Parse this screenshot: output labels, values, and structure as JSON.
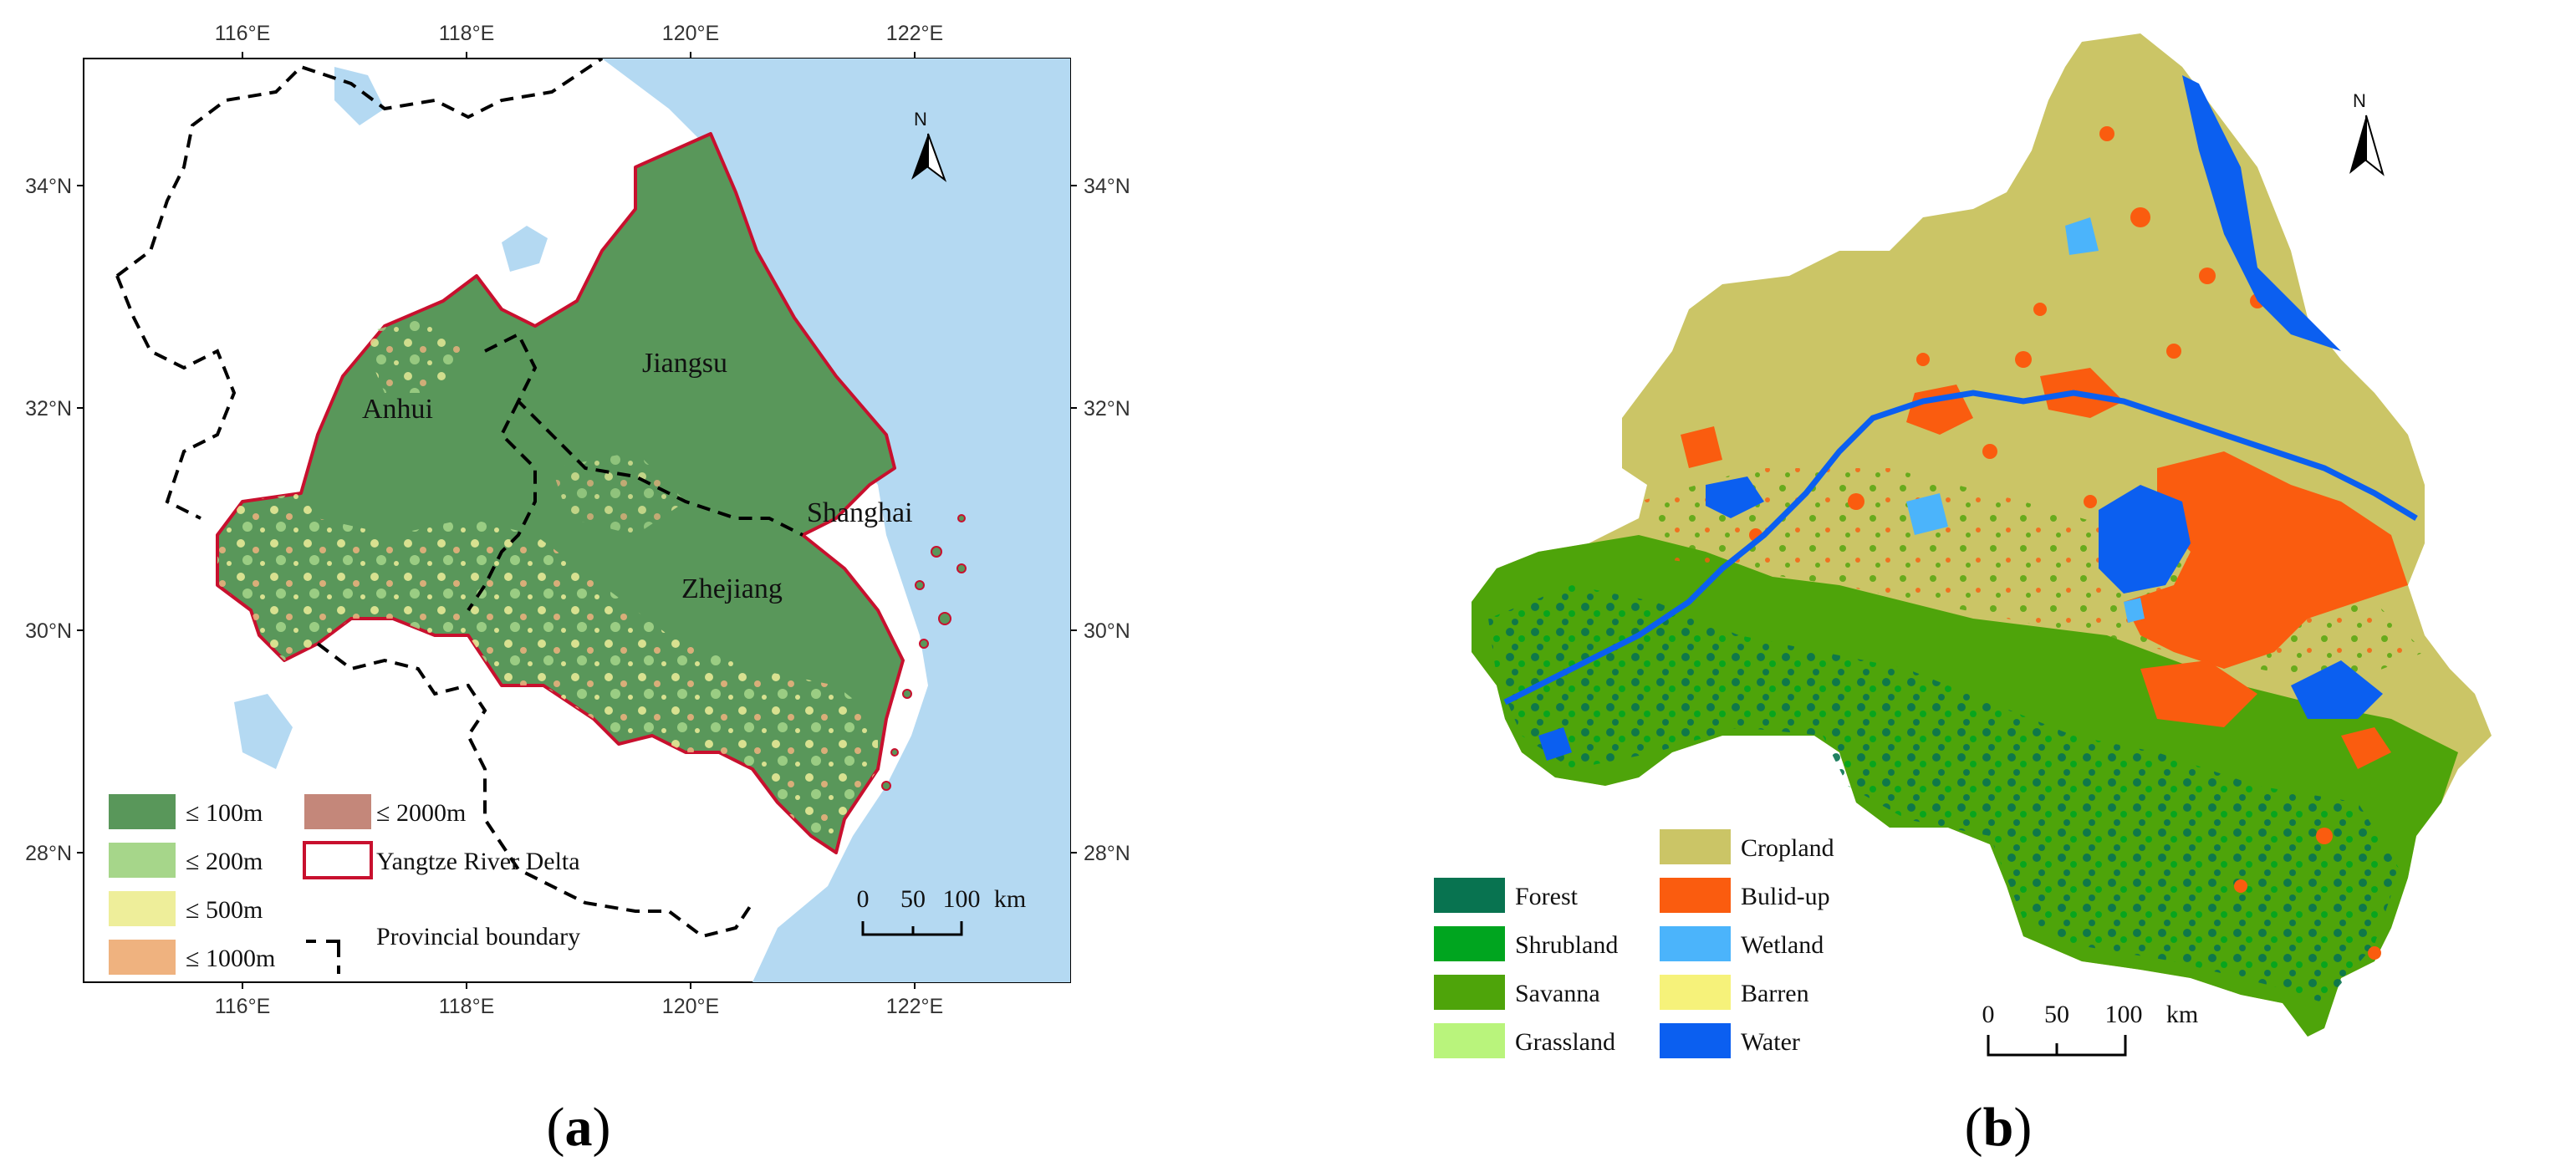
{
  "panel_a": {
    "label": "(a)",
    "label_letter": "a",
    "lon_ticks": [
      "116°E",
      "118°E",
      "120°E",
      "122°E"
    ],
    "lat_ticks": [
      "34°N",
      "32°N",
      "30°N",
      "28°N"
    ],
    "provinces": [
      "Jiangsu",
      "Anhui",
      "Shanghai",
      "Zhejiang"
    ],
    "north": "N",
    "scale": {
      "ticks": [
        "0",
        "50",
        "100"
      ],
      "unit": "km"
    },
    "legend": {
      "elevation": [
        {
          "label": "≤ 100m",
          "color": "#59975a"
        },
        {
          "label": "≤ 200m",
          "color": "#a6d68a"
        },
        {
          "label": "≤ 500m",
          "color": "#eeee9a"
        },
        {
          "label": "≤ 1000m",
          "color": "#efb27f"
        },
        {
          "label": "≤ 2000m",
          "color": "#c4877a"
        }
      ],
      "region": "Yangtze River Delta",
      "boundary": "Provincial boundary"
    },
    "colors": {
      "sea": "#b4d9f2",
      "region_border": "#c8102e",
      "lake": "#b4d9f2"
    }
  },
  "panel_b": {
    "label": "(b)",
    "label_letter": "b",
    "north": "N",
    "scale": {
      "ticks": [
        "0",
        "50",
        "100"
      ],
      "unit": "km"
    },
    "legend": [
      {
        "label": "Forest",
        "color": "#087350"
      },
      {
        "label": "Shrubland",
        "color": "#00a51f"
      },
      {
        "label": "Savanna",
        "color": "#4ea40a"
      },
      {
        "label": "Grassland",
        "color": "#b9f47c"
      },
      {
        "label": "Cropland",
        "color": "#cbc566"
      },
      {
        "label": "Bulid-up",
        "color": "#fa5c0f"
      },
      {
        "label": "Wetland",
        "color": "#4bb4fb"
      },
      {
        "label": "Barren",
        "color": "#f6f27a"
      },
      {
        "label": "Water",
        "color": "#0b5ff0"
      }
    ]
  }
}
